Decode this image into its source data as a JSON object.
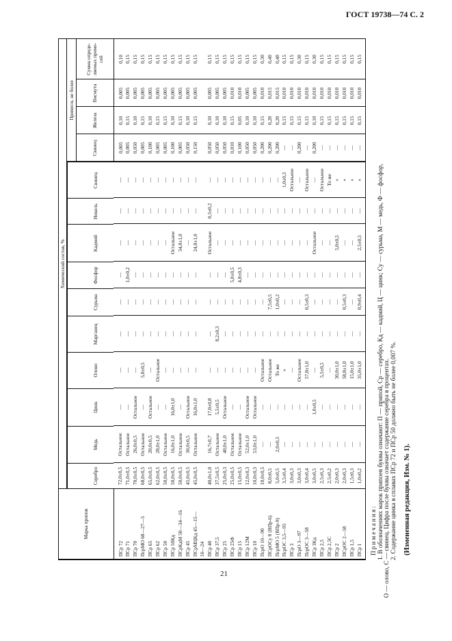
{
  "page_header": "ГОСТ 19738—74 С. 2",
  "page_number": "21",
  "table": {
    "col_grade": "Марка припоя",
    "group_composition": "Химический состав, %",
    "group_impurities": "Примеси, не более",
    "columns": [
      "Серебро",
      "Медь",
      "Цинк",
      "Олово",
      "Марганец",
      "Сурьма",
      "Фосфор",
      "Кадмий",
      "Никель",
      "Свинец",
      "Свинец",
      "Железа",
      "Висмута",
      "Сумма опреде-ляемых приме-сей"
    ],
    "rows": [
      {
        "name": "ПСр 72",
        "v": [
          "72,0±0,5",
          "Остальное",
          "—",
          "—",
          "—",
          "—",
          "—",
          "—",
          "—",
          "—",
          "0,005",
          "0,10",
          "0,005",
          "0,10"
        ]
      },
      {
        "name": "ПСр 71",
        "v": [
          "71,0±0,5",
          "Остальное",
          "—",
          "—",
          "—",
          "—",
          "1,0±0,2",
          "—",
          "—",
          "—",
          "0,005",
          "0,15",
          "0,005",
          "0,15"
        ]
      },
      {
        "name": "ПСр 70",
        "v": [
          "70,0±0,5",
          "26,0±0,5",
          "Остальное",
          "—",
          "—",
          "—",
          "—",
          "—",
          "—",
          "—",
          "0,050",
          "0,10",
          "0,005",
          "0,15"
        ]
      },
      {
        "name": "ПсрМО 68—27—5",
        "v": [
          "68,0±0,5",
          "Остальное",
          "—",
          "5,0±0,5",
          "—",
          "—",
          "—",
          "—",
          "—",
          "—",
          "0,005",
          "0,15",
          "0,005",
          "0,15"
        ]
      },
      {
        "name": "ПСр 65",
        "v": [
          "65,0±0,5",
          "20,0±0,5",
          "Остальное",
          "—",
          "—",
          "—",
          "—",
          "—",
          "—",
          "—",
          "0,100",
          "0,10",
          "0,005",
          "0,15"
        ]
      },
      {
        "name": "ПСр 62",
        "v": [
          "62,0±0,5",
          "28,0±1,0",
          "—",
          "Остальное",
          "—",
          "—",
          "—",
          "—",
          "—",
          "—",
          "0,005",
          "0,15",
          "0,005",
          "0,15"
        ]
      },
      {
        "name": "ПСр 50",
        "v": [
          "50,0±0,5",
          "Остальное",
          "—",
          "—",
          "—",
          "—",
          "—",
          "—",
          "—",
          "—",
          "0,005",
          "0,15",
          "0,005",
          "0,15"
        ]
      },
      {
        "name": "ПСр 50Кд",
        "v": [
          "50,0±0,5",
          "16,0±1,0",
          "16,0±1,0",
          "—",
          "—",
          "—",
          "—",
          "Остальное",
          "—",
          "—",
          "0,100",
          "0,10",
          "0,005",
          "0,15"
        ]
      },
      {
        "name": "ПСрКдМ 50—34—16",
        "v": [
          "50,0±0,5",
          "Остальное",
          "—",
          "—",
          "—",
          "—",
          "—",
          "34,0±1,0",
          "—",
          "—",
          "0,005",
          "0,15",
          "0,005",
          "0,15"
        ]
      },
      {
        "name": "ПСр 45",
        "v": [
          "45,0±0,5",
          "30,0±0,5",
          "Остальное",
          "—",
          "—",
          "—",
          "—",
          "—",
          "—",
          "—",
          "0,050",
          "0,10",
          "0,005",
          "0,15"
        ]
      },
      {
        "name": "ПСрМЦКд 45—15—",
        "name2": "16—24",
        "v": [
          "45,0±0,5",
          "Остальное",
          "16,0±1,0",
          "—",
          "—",
          "—",
          "—",
          "24,0±1,0",
          "—",
          "—",
          "0,150",
          "0,15",
          "0,005",
          "0,15"
        ]
      },
      {
        "name": "ПСр 40",
        "v": [
          "40,0±1,0",
          "16,7±0,7",
          "17,0±0,8",
          "—",
          "—",
          "—",
          "—",
          "Остальное",
          "0,3±0,2",
          "—",
          "0,050",
          "0,10",
          "0,005",
          "0,15"
        ]
      },
      {
        "name": "ПСр 37,5",
        "v": [
          "37,5±0,5",
          "Остальное",
          "5,5±0,5",
          "—",
          "8,2±0,3",
          "—",
          "—",
          "—",
          "—",
          "—",
          "0,050",
          "0,10",
          "0,005",
          "0,15"
        ]
      },
      {
        "name": "ПСр 25",
        "v": [
          "25,0±0,3",
          "40,0±1,0",
          "Остальное",
          "—",
          "—",
          "—",
          "—",
          "—",
          "—",
          "—",
          "0,050",
          "0,10",
          "0,005",
          "0,15"
        ]
      },
      {
        "name": "ПСр 25Ф",
        "v": [
          "25,0±0,5",
          "Остальное",
          "—",
          "—",
          "—",
          "—",
          "5,0±0,5",
          "—",
          "—",
          "—",
          "0,010",
          "0,15",
          "0,010",
          "0,15"
        ]
      },
      {
        "name": "ПСр 15",
        "v": [
          "15,0±0,5",
          "Остальное",
          "—",
          "—",
          "—",
          "—",
          "4,8±0,3",
          "—",
          "—",
          "—",
          "0,100",
          "0,05",
          "0,010",
          "0,15"
        ]
      },
      {
        "name": "ПСр 12М",
        "v": [
          "12,0±0,3",
          "52,0±1,0",
          "Остальное",
          "—",
          "—",
          "—",
          "—",
          "—",
          "—",
          "—",
          "0,050",
          "0,10",
          "0,005",
          "0,15"
        ]
      },
      {
        "name": "ПСр 10",
        "v": [
          "10,0±0,3",
          "53,0±1,0",
          "Остальное",
          "—",
          "—",
          "—",
          "—",
          "—",
          "—",
          "—",
          "0,050",
          "0,10",
          "0,005",
          "0,15"
        ]
      },
      {
        "name": "ПсрО 10—90",
        "v": [
          "10,0±0,5",
          "—",
          "—",
          "Остальное",
          "—",
          "—",
          "—",
          "—",
          "—",
          "—",
          "0,200",
          "0,15",
          "0,010",
          "0,30"
        ]
      },
      {
        "name": "ПСрОСу 8 (ВПр-6)",
        "v": [
          "8,0±0,5",
          "—",
          "—",
          "Остальное",
          "—",
          "7,5±0,5",
          "—",
          "—",
          "—",
          "—",
          "0,200",
          "0,20",
          "0,015",
          "0,40"
        ]
      },
      {
        "name": "ПсрМО 5 (ВПр-9)",
        "v": [
          "5,0±0,5",
          "2,0±0,5",
          "—",
          "То же",
          "—",
          "1,0±0,2",
          "—",
          "—",
          "—",
          "—",
          "0,200",
          "0,20",
          "0,015",
          "0,40"
        ]
      },
      {
        "name": "ПсрОС 3,5—95",
        "v": [
          "3,5±0,4",
          "—",
          "—",
          "»",
          "—",
          "—",
          "—",
          "—",
          "—",
          "1,0±0,3",
          "—",
          "0,15",
          "0,010",
          "0,15"
        ]
      },
      {
        "name": "ПСр 3",
        "v": [
          "3,0±0,3",
          "—",
          "—",
          "—",
          "—",
          "—",
          "—",
          "—",
          "—",
          "Остальное",
          "—",
          "0,15",
          "0,010",
          "0,15"
        ]
      },
      {
        "name": "ПсрО 3—97",
        "v": [
          "3,0±0,3",
          "—",
          "—",
          "Остальное",
          "—",
          "—",
          "—",
          "—",
          "—",
          "—",
          "0,200",
          "0,15",
          "0,010",
          "0,30"
        ]
      },
      {
        "name": "ПсрОС 3—58",
        "v": [
          "3,0±0,4",
          "—",
          "—",
          "57,8±1,0",
          "—",
          "0,5±0,3",
          "—",
          "—",
          "—",
          "Остальное",
          "—",
          "0,15",
          "0,010",
          "0,15"
        ]
      },
      {
        "name": "ПСр 3Кд",
        "v": [
          "3,0±0,5",
          "—",
          "1,0±0,5",
          "—",
          "—",
          "—",
          "—",
          "Остальное",
          "—",
          "—",
          "0,200",
          "0,10",
          "0,010",
          "0,30"
        ]
      },
      {
        "name": "ПСр 2,5",
        "v": [
          "2,5±0,3",
          "—",
          "—",
          "5,5±0,5",
          "—",
          "—",
          "—",
          "—",
          "—",
          "Остальное",
          "—",
          "0,15",
          "0,010",
          "0,15"
        ]
      },
      {
        "name": "ПСр 2,5С",
        "v": [
          "2,5±0,2",
          "—",
          "—",
          "—",
          "—",
          "—",
          "—",
          "—",
          "—",
          "То же",
          "—",
          "0,15",
          "0,010",
          "0,15"
        ]
      },
      {
        "name": "ПСр 2",
        "v": [
          "2,0±0,3",
          "—",
          "—",
          "30,0±1,0",
          "—",
          "—",
          "—",
          "5,0±0,5",
          "—",
          "»",
          "—",
          "0,15",
          "0,010",
          "0,15"
        ]
      },
      {
        "name": "ПСрОС 2—58",
        "v": [
          "2,0±0,3",
          "—",
          "—",
          "58,8±1,0",
          "—",
          "0,5±0,3",
          "—",
          "—",
          "—",
          "»",
          "—",
          "0,15",
          "0,010",
          "0,15"
        ]
      },
      {
        "name": "ПСр 1,5",
        "v": [
          "1,5±0,3",
          "—",
          "—",
          "15,0±1,0",
          "—",
          "—",
          "—",
          "—",
          "—",
          "»",
          "—",
          "0,15",
          "0,010",
          "0,15"
        ]
      },
      {
        "name": "ПСр 1",
        "v": [
          "1,0±0,2",
          "—",
          "—",
          "35,0±1,0",
          "—",
          "0,9±0,4",
          "—",
          "2,5±0,5",
          "—",
          "»",
          "—",
          "0,15",
          "0,010",
          "0,15"
        ]
      }
    ]
  },
  "notes": {
    "title": "Примечания:",
    "note1": "1. В обозначениях марок припоев буквы означают: П — припой, Ср — серебро, Кд — кадмий, Ц — цинк; Су — сурьма, М — медь, Ф — фосфор,",
    "note1_cont": "О — олово, С — свинец. Цифра после буквы означает содержание серебра в процентах.",
    "note2": "2. Содержание цинка в сплавах ПСр 72 и ПСр 50 должно быть не более 0,007 %.",
    "change": "(Измененная редакция, Изм. № 1)."
  }
}
